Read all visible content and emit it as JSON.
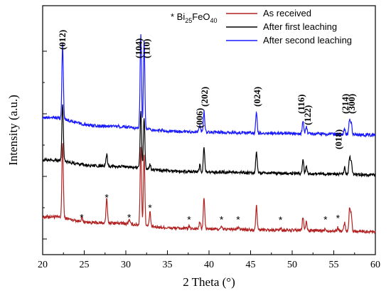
{
  "chart_data": {
    "type": "line",
    "title": "",
    "xlabel": "2 Theta (°)",
    "ylabel": "Intensity (a.u.)",
    "xlim": [
      20,
      60
    ],
    "x_ticks": [
      20,
      25,
      30,
      35,
      40,
      45,
      50,
      55,
      60
    ],
    "y_ticks_labeled": false,
    "grid": false,
    "legend_position": "top-right",
    "legend_note_prefix": "* Bi",
    "legend_note_sub1": "25",
    "legend_note_mid": "FeO",
    "legend_note_sub2": "40",
    "series": [
      {
        "name": "As received",
        "color": "#b22222",
        "baseline": 0.0
      },
      {
        "name": "After first leaching",
        "color": "#000000",
        "baseline": 1.0
      },
      {
        "name": "After second leaching",
        "color": "#1a1aff",
        "baseline": 2.0
      }
    ],
    "peaks": [
      {
        "two_theta": 22.4,
        "hkl": "(012)",
        "h_received": 2.2,
        "h_first": 1.7,
        "h_second": 2.2
      },
      {
        "two_theta": 31.8,
        "hkl": "(104)",
        "h_received": 2.3,
        "h_first": 1.7,
        "h_second": 2.8
      },
      {
        "two_theta": 32.2,
        "hkl": "(110)",
        "h_received": 2.1,
        "h_first": 1.5,
        "h_second": 2.6
      },
      {
        "two_theta": 38.9,
        "hkl": "(006)",
        "h_received": 0.2,
        "h_first": 0.2,
        "h_second": 0.2
      },
      {
        "two_theta": 39.4,
        "hkl": "(202)",
        "h_received": 0.9,
        "h_first": 0.7,
        "h_second": 0.6
      },
      {
        "two_theta": 45.7,
        "hkl": "(024)",
        "h_received": 0.7,
        "h_first": 0.6,
        "h_second": 0.6
      },
      {
        "two_theta": 51.3,
        "hkl": "(116)",
        "h_received": 0.4,
        "h_first": 0.4,
        "h_second": 0.4
      },
      {
        "two_theta": 51.7,
        "hkl": "(122)",
        "h_received": 0.25,
        "h_first": 0.2,
        "h_second": 0.2
      },
      {
        "two_theta": 56.3,
        "hkl": "(018)",
        "h_received": 0.25,
        "h_first": 0.2,
        "h_second": 0.15
      },
      {
        "two_theta": 56.9,
        "hkl": "(214)",
        "h_received": 0.65,
        "h_first": 0.5,
        "h_second": 0.45
      },
      {
        "two_theta": 57.1,
        "hkl": "(300)",
        "h_received": 0.5,
        "h_first": 0.4,
        "h_second": 0.35
      }
    ],
    "impurity_peaks": [
      {
        "two_theta": 24.7,
        "height": 0.12
      },
      {
        "two_theta": 27.7,
        "height": 0.7
      },
      {
        "two_theta": 30.4,
        "height": 0.12
      },
      {
        "two_theta": 32.9,
        "height": 0.4
      },
      {
        "two_theta": 37.6,
        "height": 0.06
      },
      {
        "two_theta": 41.5,
        "height": 0.06
      },
      {
        "two_theta": 43.5,
        "height": 0.06
      },
      {
        "two_theta": 48.6,
        "height": 0.05
      },
      {
        "two_theta": 54.0,
        "height": 0.06
      },
      {
        "two_theta": 55.5,
        "height": 0.1
      }
    ],
    "impurity_marker": "*"
  }
}
